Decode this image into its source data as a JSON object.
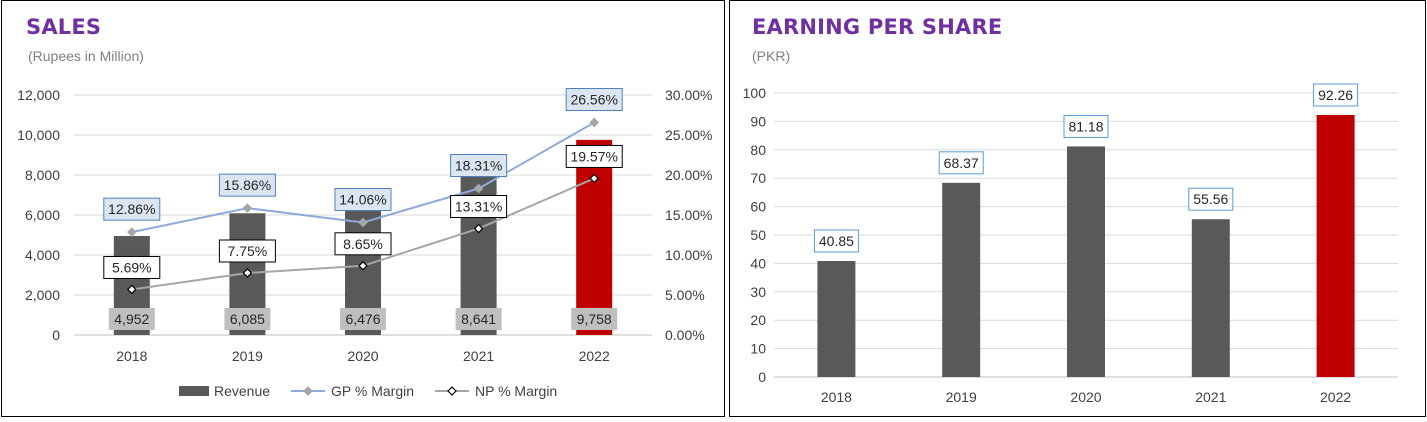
{
  "colors": {
    "title": "#7030a0",
    "subtitle": "#7f7f7f",
    "revenue_bar": "#595959",
    "highlight_bar": "#c00000",
    "gp_line": "#8eaadb",
    "np_line": "#a6a6a6",
    "gp_label_fill": "#dce6f2",
    "gp_label_border": "#4f81bd",
    "np_label_fill": "#ffffff",
    "np_label_border": "#000000",
    "revenue_label_fill": "#bfbfbf",
    "eps_label_fill": "#ffffff",
    "eps_label_border": "#5b9bd5"
  },
  "sales": {
    "title": "SALES",
    "subtitle": "(Rupees in Million)"
  },
  "eps": {
    "title": "EARNING PER SHARE",
    "subtitle": "(PKR)"
  },
  "chart_data": [
    {
      "type": "bar",
      "title": "SALES",
      "subtitle": "(Rupees in Million)",
      "categories": [
        "2018",
        "2019",
        "2020",
        "2021",
        "2022"
      ],
      "ylim": [
        0,
        12000
      ],
      "yticks": [
        "0",
        "2,000",
        "4,000",
        "6,000",
        "8,000",
        "10,000",
        "12,000"
      ],
      "y2lim": [
        0,
        30
      ],
      "y2ticks": [
        "0.00%",
        "5.00%",
        "10.00%",
        "15.00%",
        "20.00%",
        "25.00%",
        "30.00%"
      ],
      "grid": true,
      "legend_position": "bottom",
      "highlight_category": "2022",
      "series": [
        {
          "name": "Revenue",
          "kind": "bar",
          "axis": "left",
          "values": [
            4952,
            6085,
            6476,
            8641,
            9758
          ],
          "labels": [
            "4,952",
            "6,085",
            "6,476",
            "8,641",
            "9,758"
          ]
        },
        {
          "name": "GP % Margin",
          "kind": "line",
          "axis": "right",
          "marker": "diamond",
          "values": [
            12.86,
            15.86,
            14.06,
            18.31,
            26.56
          ],
          "labels": [
            "12.86%",
            "15.86%",
            "14.06%",
            "18.31%",
            "26.56%"
          ]
        },
        {
          "name": "NP % Margin",
          "kind": "line",
          "axis": "right",
          "marker": "diamond-open",
          "values": [
            5.69,
            7.75,
            8.65,
            13.31,
            19.57
          ],
          "labels": [
            "5.69%",
            "7.75%",
            "8.65%",
            "13.31%",
            "19.57%"
          ]
        }
      ]
    },
    {
      "type": "bar",
      "title": "EARNING PER SHARE",
      "subtitle": "(PKR)",
      "categories": [
        "2018",
        "2019",
        "2020",
        "2021",
        "2022"
      ],
      "ylim": [
        0,
        100
      ],
      "yticks": [
        "0",
        "10",
        "20",
        "30",
        "40",
        "50",
        "60",
        "70",
        "80",
        "90",
        "100"
      ],
      "grid": true,
      "highlight_category": "2022",
      "values": [
        40.85,
        68.37,
        81.18,
        55.56,
        92.26
      ],
      "labels": [
        "40.85",
        "68.37",
        "81.18",
        "55.56",
        "92.26"
      ]
    }
  ]
}
